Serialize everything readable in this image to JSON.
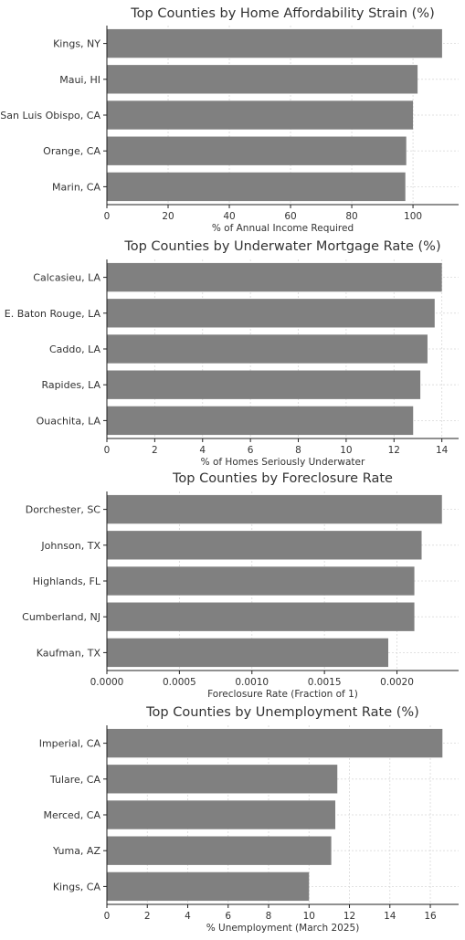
{
  "chart_data": [
    {
      "type": "bar",
      "orientation": "horizontal",
      "title": "Top Counties by Home Affordability Strain (%)",
      "xlabel": "% of Annual Income Required",
      "ylabel": "",
      "categories": [
        "Kings, NY",
        "Maui, HI",
        "San Luis Obispo, CA",
        "Orange, CA",
        "Marin, CA"
      ],
      "values": [
        109.5,
        101.5,
        100.0,
        97.8,
        97.5
      ],
      "xlim": [
        0,
        114.9
      ],
      "xticks": [
        0,
        20,
        40,
        60,
        80,
        100
      ],
      "tick_labels": [
        "0",
        "20",
        "40",
        "60",
        "80",
        "100"
      ],
      "bar_color": "#808080",
      "grid": true
    },
    {
      "type": "bar",
      "orientation": "horizontal",
      "title": "Top Counties by Underwater Mortgage Rate (%)",
      "xlabel": "% of Homes Seriously Underwater",
      "ylabel": "",
      "categories": [
        "Calcasieu, LA",
        "E. Baton Rouge, LA",
        "Caddo, LA",
        "Rapides, LA",
        "Ouachita, LA"
      ],
      "values": [
        14.0,
        13.7,
        13.4,
        13.1,
        12.8
      ],
      "xlim": [
        0,
        14.7
      ],
      "xticks": [
        0,
        2,
        4,
        6,
        8,
        10,
        12,
        14
      ],
      "tick_labels": [
        "0",
        "2",
        "4",
        "6",
        "8",
        "10",
        "12",
        "14"
      ],
      "bar_color": "#808080",
      "grid": true
    },
    {
      "type": "bar",
      "orientation": "horizontal",
      "title": "Top Counties by Foreclosure Rate",
      "xlabel": "Foreclosure Rate (Fraction of 1)",
      "ylabel": "",
      "categories": [
        "Dorchester, SC",
        "Johnson, TX",
        "Highlands, FL",
        "Cumberland, NJ",
        "Kaufman, TX"
      ],
      "values": [
        0.00231,
        0.00217,
        0.00212,
        0.00212,
        0.00194
      ],
      "xlim": [
        0,
        0.002425
      ],
      "xticks": [
        0,
        0.0005,
        0.001,
        0.0015,
        0.002
      ],
      "tick_labels": [
        "0.0000",
        "0.0005",
        "0.0010",
        "0.0015",
        "0.0020"
      ],
      "bar_color": "#808080",
      "grid": true
    },
    {
      "type": "bar",
      "orientation": "horizontal",
      "title": "Top Counties by Unemployment Rate (%)",
      "xlabel": "% Unemployment (March 2025)",
      "ylabel": "",
      "categories": [
        "Imperial, CA",
        "Tulare, CA",
        "Merced, CA",
        "Yuma, AZ",
        "Kings, CA"
      ],
      "values": [
        16.6,
        11.4,
        11.3,
        11.1,
        10.0
      ],
      "xlim": [
        0,
        17.4
      ],
      "xticks": [
        0,
        2,
        4,
        6,
        8,
        10,
        12,
        14,
        16
      ],
      "tick_labels": [
        "0",
        "2",
        "4",
        "6",
        "8",
        "10",
        "12",
        "14",
        "16"
      ],
      "bar_color": "#808080",
      "grid": true
    }
  ]
}
